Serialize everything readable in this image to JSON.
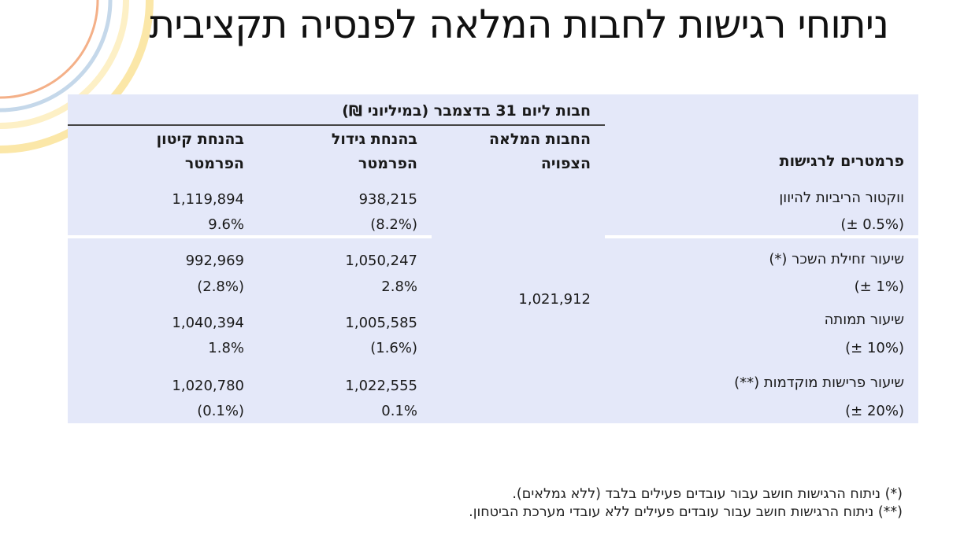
{
  "title": "ניתוחי רגישות לחבות המלאה לפנסיה תקציבית",
  "table": {
    "group_header": "חבות ליום 31 בדצמבר (במיליוני ₪)",
    "columns": {
      "decrease": "בהנחת קיטון הפרמטר",
      "increase": "בהנחת גידול הפרמטר",
      "expected": "החבות המלאה הצפויה",
      "parameters": "פרמטרים לרגישות"
    },
    "expected_value": "1,021,912",
    "rows": [
      {
        "name": "ווקטור הריביות להיוון",
        "range": "(± 0.5%)",
        "decrease_value": "1,119,894",
        "decrease_pct": "9.6%",
        "increase_value": "938,215",
        "increase_pct": "(8.2%)"
      },
      {
        "name": "שיעור זחילת השכר (*)",
        "range": "(± 1%)",
        "decrease_value": "992,969",
        "decrease_pct": "(2.8%)",
        "increase_value": "1,050,247",
        "increase_pct": "2.8%"
      },
      {
        "name": "שיעור תמותה",
        "range": "(± 10%)",
        "decrease_value": "1,040,394",
        "decrease_pct": "1.8%",
        "increase_value": "1,005,585",
        "increase_pct": "(1.6%)"
      },
      {
        "name": "שיעור פרישות מוקדמות (**)",
        "range": "(± 20%)",
        "decrease_value": "1,020,780",
        "decrease_pct": "(0.1%)",
        "increase_value": "1,022,555",
        "increase_pct": "0.1%"
      }
    ]
  },
  "footnotes": [
    "(*)   ניתוח הרגישות חושב עבור עובדים פעילים בלבד (ללא גמלאים).",
    "(**) ניתוח הרגישות חושב עבור עובדים פעילים ללא עובדי מערכת הביטחון."
  ],
  "colors": {
    "table_bg": "#e4e8f9",
    "deco_yellow": "#fbe7a8",
    "deco_blue": "#c5d8ea",
    "deco_orange": "#f4b088"
  }
}
